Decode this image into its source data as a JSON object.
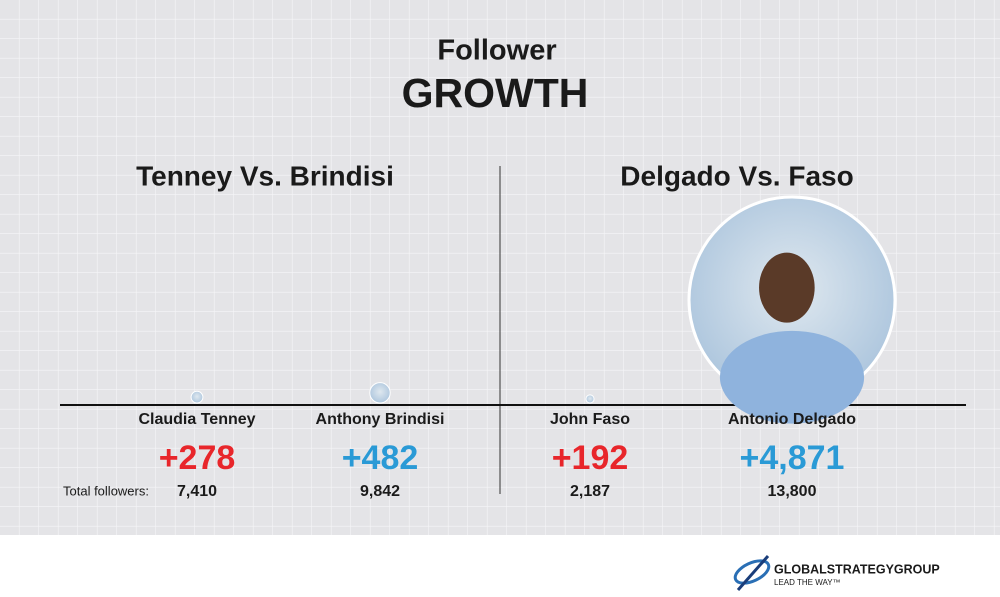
{
  "header": {
    "title": "Follower",
    "subtitle": "GROWTH"
  },
  "total_label": "Total followers:",
  "panels": [
    {
      "title": "Tenney Vs. Brindisi",
      "candidates": [
        {
          "name": "Claudia Tenney",
          "growth": 278,
          "growth_label": "+278",
          "total": "7,410",
          "color": "#e8262b"
        },
        {
          "name": "Anthony Brindisi",
          "growth": 482,
          "growth_label": "+482",
          "total": "9,842",
          "color": "#2a9ad6"
        }
      ]
    },
    {
      "title": "Delgado Vs. Faso",
      "candidates": [
        {
          "name": "John Faso",
          "growth": 192,
          "growth_label": "+192",
          "total": "2,187",
          "color": "#e8262b"
        },
        {
          "name": "Antonio Delgado",
          "growth": 4871,
          "growth_label": "+4,871",
          "total": "13,800",
          "color": "#2a9ad6"
        }
      ]
    }
  ],
  "logo": {
    "name": "GLOBALSTRATEGYGROUP",
    "tagline": "LEAD THE WAY™"
  }
}
